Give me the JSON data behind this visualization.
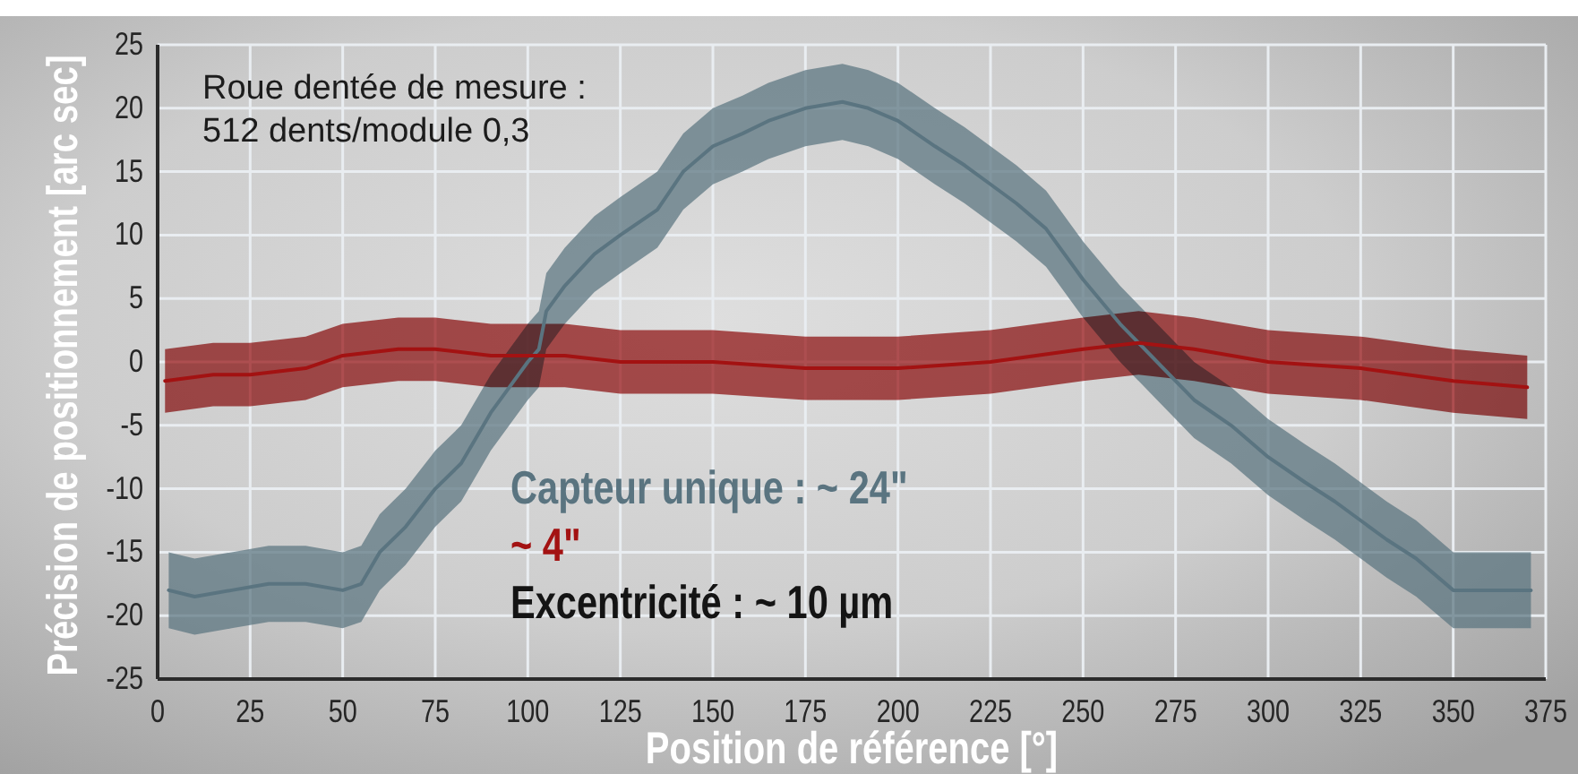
{
  "chart_data": {
    "type": "line",
    "xlabel": "Position de référence [°]",
    "ylabel": "Précision de positionnement [arc sec]",
    "xlim": [
      0,
      375
    ],
    "xticks": [
      0,
      25,
      50,
      75,
      100,
      125,
      150,
      175,
      200,
      225,
      250,
      275,
      300,
      325,
      350,
      375
    ],
    "ylim": [
      -25,
      25
    ],
    "yticks": [
      -25,
      -20,
      -15,
      -10,
      -5,
      0,
      5,
      10,
      15,
      20,
      25
    ],
    "grid": true,
    "annotations": [
      "Roue dentée de mesure :\n512 dents/module 0,3",
      "Excentricité : ~ 10 µm"
    ],
    "series": [
      {
        "name": "Capteur unique : ~ 24\"",
        "color": "#5a7480",
        "x": [
          3,
          10,
          20,
          30,
          40,
          50,
          55,
          60,
          67,
          75,
          82,
          90,
          95,
          100,
          103,
          105,
          110,
          118,
          125,
          135,
          142,
          150,
          158,
          165,
          175,
          185,
          192,
          200,
          210,
          218,
          225,
          232,
          240,
          250,
          260,
          270,
          280,
          290,
          300,
          310,
          318,
          325,
          332,
          340,
          350,
          360,
          371
        ],
        "values": [
          -18,
          -18.5,
          -18,
          -17.5,
          -17.5,
          -18,
          -17.5,
          -15,
          -13,
          -10,
          -8,
          -4,
          -2,
          0,
          1,
          4,
          6,
          8.5,
          10,
          12,
          15,
          17,
          18,
          19,
          20,
          20.5,
          20,
          19,
          17,
          15.5,
          14,
          12.5,
          10.5,
          6.5,
          3,
          0,
          -3,
          -5,
          -7.5,
          -9.5,
          -11,
          -12.5,
          -14,
          -15.5,
          -18,
          -18,
          -18
        ],
        "lower": [
          -21,
          -21.5,
          -21,
          -20.5,
          -20.5,
          -21,
          -20.5,
          -18,
          -16,
          -13,
          -11,
          -7,
          -5,
          -3,
          -2,
          1,
          3,
          5.5,
          7,
          9,
          12,
          14,
          15,
          16,
          17,
          17.5,
          17,
          16,
          14,
          12.5,
          11,
          9.5,
          7.5,
          3.5,
          0,
          -3,
          -6,
          -8,
          -10.5,
          -12.5,
          -14,
          -15.5,
          -17,
          -18.5,
          -21,
          -21,
          -21
        ],
        "upper": [
          -15,
          -15.5,
          -15,
          -14.5,
          -14.5,
          -15,
          -14.5,
          -12,
          -10,
          -7,
          -5,
          -1,
          1,
          3,
          4,
          7,
          9,
          11.5,
          13,
          15,
          18,
          20,
          21,
          22,
          23,
          23.5,
          23,
          22,
          20,
          18.5,
          17,
          15.5,
          13.5,
          9.5,
          6,
          3,
          0,
          -2,
          -4.5,
          -6.5,
          -8,
          -9.5,
          -11,
          -12.5,
          -15,
          -15,
          -15
        ]
      },
      {
        "name": "~ 4\"",
        "color": "#a31212",
        "x": [
          2,
          15,
          25,
          40,
          50,
          65,
          75,
          90,
          110,
          125,
          150,
          175,
          200,
          225,
          250,
          265,
          280,
          300,
          325,
          350,
          370
        ],
        "values": [
          -1.5,
          -1,
          -1,
          -0.5,
          0.5,
          1,
          1,
          0.5,
          0.5,
          0,
          0,
          -0.5,
          -0.5,
          0,
          1,
          1.5,
          1,
          0,
          -0.5,
          -1.5,
          -2
        ],
        "lower": [
          -4,
          -3.5,
          -3.5,
          -3,
          -2,
          -1.5,
          -1.5,
          -2,
          -2,
          -2.5,
          -2.5,
          -3,
          -3,
          -2.5,
          -1.5,
          -1,
          -1.5,
          -2.5,
          -3,
          -4,
          -4.5
        ],
        "upper": [
          1,
          1.5,
          1.5,
          2,
          3,
          3.5,
          3.5,
          3,
          3,
          2.5,
          2.5,
          2,
          2,
          2.5,
          3.5,
          4,
          3.5,
          2.5,
          2,
          1,
          0.5
        ]
      }
    ]
  }
}
